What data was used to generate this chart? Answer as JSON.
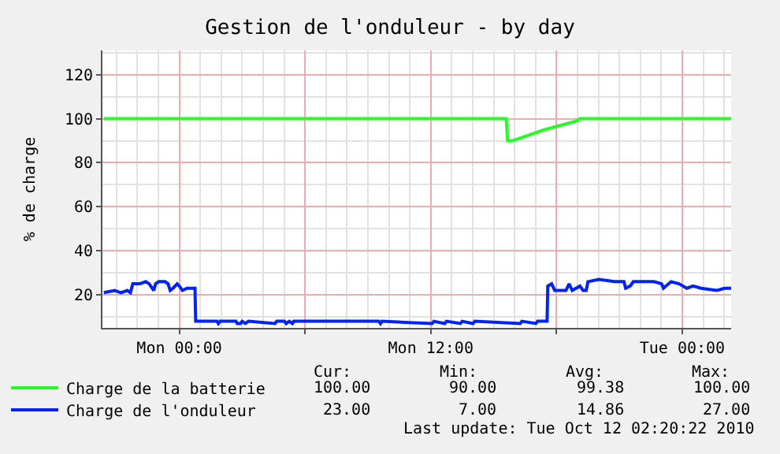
{
  "chart_data": {
    "type": "line",
    "title": "Gestion de l'onduleur - by day",
    "ylabel": "% de charge",
    "xlim": [
      "2010-10-10T20:20",
      "2010-10-12T02:20"
    ],
    "xticks": [
      {
        "value": "2010-10-11T00:00",
        "label": "Mon 00:00"
      },
      {
        "value": "2010-10-11T06:00",
        "label": null
      },
      {
        "value": "2010-10-11T12:00",
        "label": "Mon 12:00"
      },
      {
        "value": "2010-10-11T18:00",
        "label": null
      },
      {
        "value": "2010-10-12T00:00",
        "label": "Tue 00:00"
      }
    ],
    "ylim": [
      5,
      131
    ],
    "yticks": [
      20,
      40,
      60,
      80,
      100,
      120
    ],
    "grid": true,
    "legend": "bottom",
    "series": [
      {
        "name": "Charge de la batterie",
        "color": "#22ff22",
        "x": [
          "2010-10-10T20:24",
          "2010-10-11T15:36",
          "2010-10-11T15:40",
          "2010-10-11T15:54",
          "2010-10-11T17:24",
          "2010-10-11T18:58",
          "2010-10-11T19:07",
          "2010-10-12T02:20"
        ],
        "values": [
          100,
          100,
          90,
          90,
          95,
          99,
          100,
          100
        ]
      },
      {
        "name": "Charge de l'onduleur",
        "color": "#0022ff",
        "x": [
          "2010-10-10T20:24",
          "2010-10-10T20:55",
          "2010-10-10T21:13",
          "2010-10-10T21:31",
          "2010-10-10T21:40",
          "2010-10-10T21:47",
          "2010-10-10T22:07",
          "2010-10-10T22:24",
          "2010-10-10T22:34",
          "2010-10-10T22:47",
          "2010-10-10T22:52",
          "2010-10-10T23:01",
          "2010-10-10T23:19",
          "2010-10-10T23:28",
          "2010-10-10T23:34",
          "2010-10-10T23:42",
          "2010-10-10T23:54",
          "2010-10-11T00:00",
          "2010-10-11T00:09",
          "2010-10-11T00:22",
          "2010-10-11T00:45",
          "2010-10-11T00:47",
          "2010-10-11T01:48",
          "2010-10-11T01:52",
          "2010-10-11T01:57",
          "2010-10-11T02:42",
          "2010-10-11T02:46",
          "2010-10-11T02:55",
          "2010-10-11T03:00",
          "2010-10-11T03:09",
          "2010-10-11T03:18",
          "2010-10-11T04:34",
          "2010-10-11T04:39",
          "2010-10-11T05:01",
          "2010-10-11T05:06",
          "2010-10-11T05:15",
          "2010-10-11T05:24",
          "2010-10-11T05:28",
          "2010-10-11T09:31",
          "2010-10-11T09:36",
          "2010-10-11T09:40",
          "2010-10-11T12:04",
          "2010-10-11T12:09",
          "2010-10-11T12:40",
          "2010-10-11T12:45",
          "2010-10-11T13:25",
          "2010-10-11T13:30",
          "2010-10-11T14:01",
          "2010-10-11T14:06",
          "2010-10-11T16:16",
          "2010-10-11T16:21",
          "2010-10-11T17:01",
          "2010-10-11T17:06",
          "2010-10-11T17:33",
          "2010-10-11T17:35",
          "2010-10-11T17:46",
          "2010-10-11T17:55",
          "2010-10-11T18:27",
          "2010-10-11T18:36",
          "2010-10-11T18:45",
          "2010-10-11T19:07",
          "2010-10-11T19:16",
          "2010-10-11T19:25",
          "2010-10-11T19:30",
          "2010-10-11T20:01",
          "2010-10-11T20:46",
          "2010-10-11T21:13",
          "2010-10-11T21:18",
          "2010-10-11T21:31",
          "2010-10-11T21:40",
          "2010-10-11T22:39",
          "2010-10-11T23:01",
          "2010-10-11T23:06",
          "2010-10-11T23:28",
          "2010-10-11T23:51",
          "2010-10-12T00:13",
          "2010-10-12T00:31",
          "2010-10-12T00:54",
          "2010-10-12T01:39",
          "2010-10-12T02:01",
          "2010-10-12T02:20"
        ],
        "values": [
          21,
          22,
          21,
          22,
          21,
          25,
          25,
          26,
          25,
          22,
          25,
          26,
          26,
          25,
          22,
          23,
          25,
          24,
          22,
          23,
          23,
          8,
          8,
          7,
          8,
          8,
          7,
          7,
          8,
          7,
          8,
          7,
          8,
          8,
          7,
          8,
          7,
          8,
          8,
          7,
          8,
          7,
          8,
          7,
          8,
          7,
          8,
          7,
          8,
          7,
          8,
          7,
          8,
          8,
          24,
          25,
          22,
          22,
          25,
          22,
          24,
          22,
          22,
          26,
          27,
          26,
          26,
          23,
          24,
          26,
          26,
          25,
          23,
          26,
          25,
          23,
          24,
          23,
          22,
          23,
          23
        ]
      }
    ],
    "annotations": [
      "Cur:",
      "Min:",
      "Avg:",
      "Max:",
      "100.00",
      "90.00",
      "99.38",
      "100.00",
      "23.00",
      "7.00",
      "14.86",
      "27.00",
      "Last update: Tue Oct 12 02:20:22 2010"
    ]
  }
}
